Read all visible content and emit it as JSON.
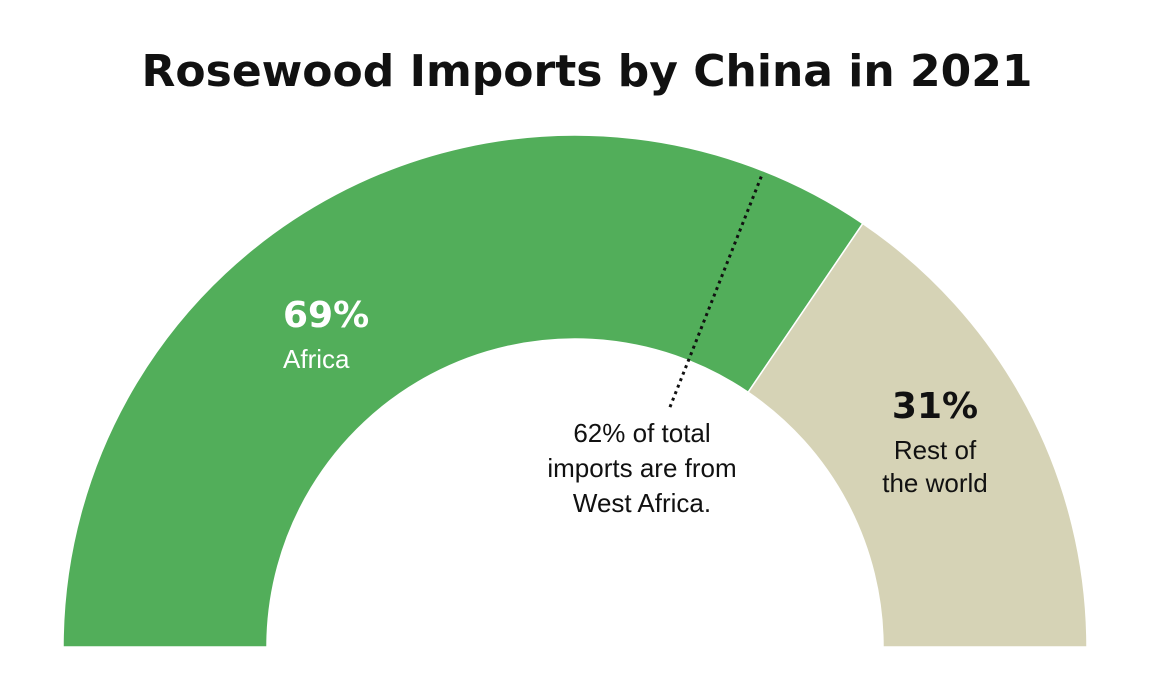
{
  "chart_data": {
    "type": "pie",
    "variant": "half-donut",
    "title": "Rosewood Imports by China in 2021",
    "slices": [
      {
        "value": 69,
        "value_label": "69%",
        "label_lines": [
          "Africa"
        ],
        "color": "#52ae5a",
        "text_color": "#ffffff"
      },
      {
        "value": 31,
        "value_label": "31%",
        "label_lines": [
          "Rest of",
          "the world"
        ],
        "color": "#d6d3b6",
        "text_color": "#111111"
      }
    ],
    "marker": {
      "value": 62,
      "note_lines": [
        "62% of total",
        "imports are from",
        "West Africa."
      ]
    }
  }
}
